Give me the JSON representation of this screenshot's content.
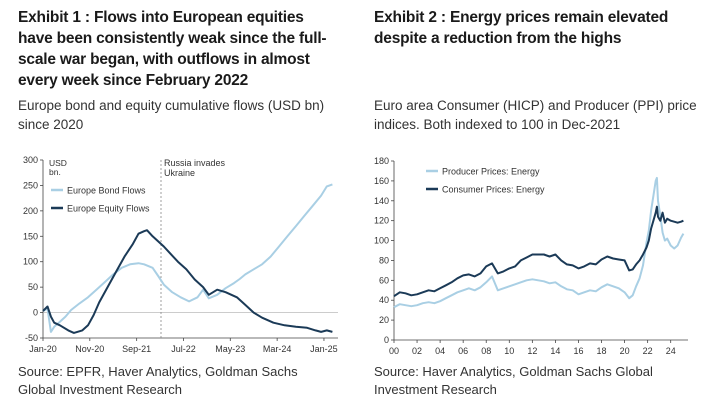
{
  "exhibit1": {
    "title": "Exhibit 1 : Flows into European equities have been consistently weak since the full-scale war began, with outflows in almost every week since February 2022",
    "subtitle": "Europe bond and equity cumulative flows (USD bn) since 2020",
    "source": "Source: EPFR, Haver Analytics, Goldman Sachs Global Investment Research"
  },
  "exhibit2": {
    "title": "Exhibit 2 : Energy prices remain elevated despite a reduction from the highs",
    "subtitle": "Euro area Consumer (HICP) and Producer (PPI) price indices. Both indexed to 100 in Dec-2021",
    "source": "Source: Haver Analytics, Goldman Sachs Global Investment Research"
  },
  "colors": {
    "dark": "#1b3a57",
    "light": "#a9cfe4",
    "axis": "#444444"
  },
  "chart_data": [
    {
      "type": "line",
      "ylabel": "USD bn.",
      "ylim": [
        -50,
        300
      ],
      "yticks": [
        -50,
        0,
        50,
        100,
        150,
        200,
        250,
        300
      ],
      "xlim": [
        2020.0,
        2025.25
      ],
      "xtick_labels": [
        "Jan-20",
        "Nov-20",
        "Sep-21",
        "Jul-22",
        "May-23",
        "Mar-24",
        "Jan-25"
      ],
      "xtick_positions": [
        2020.0,
        2020.833,
        2021.667,
        2022.5,
        2023.333,
        2024.167,
        2025.0
      ],
      "annotation": {
        "text_line1": "Russia invades",
        "text_line2": "Ukraine",
        "x": 2022.1
      },
      "legend": "top-left",
      "grid": false,
      "series": [
        {
          "name": "Europe Bond Flows",
          "color": "#a9cfe4",
          "x": [
            2020.0,
            2020.08,
            2020.14,
            2020.2,
            2020.3,
            2020.4,
            2020.5,
            2020.65,
            2020.8,
            2020.95,
            2021.1,
            2021.25,
            2021.4,
            2021.55,
            2021.7,
            2021.8,
            2021.95,
            2022.05,
            2022.15,
            2022.3,
            2022.45,
            2022.6,
            2022.75,
            2022.85,
            2022.95,
            2023.1,
            2023.25,
            2023.4,
            2023.5,
            2023.6,
            2023.75,
            2023.9,
            2024.05,
            2024.2,
            2024.35,
            2024.5,
            2024.65,
            2024.8,
            2024.95,
            2025.05,
            2025.15
          ],
          "y": [
            3,
            8,
            -38,
            -28,
            -18,
            -8,
            5,
            18,
            30,
            45,
            60,
            75,
            88,
            95,
            97,
            95,
            88,
            72,
            55,
            40,
            30,
            22,
            30,
            45,
            28,
            35,
            48,
            58,
            66,
            75,
            85,
            95,
            110,
            130,
            150,
            170,
            190,
            210,
            230,
            248,
            252
          ]
        },
        {
          "name": "Europe Equity Flows",
          "color": "#1b3a57",
          "x": [
            2020.0,
            2020.08,
            2020.14,
            2020.2,
            2020.3,
            2020.45,
            2020.55,
            2020.7,
            2020.8,
            2020.9,
            2021.0,
            2021.15,
            2021.3,
            2021.45,
            2021.6,
            2021.7,
            2021.8,
            2021.85,
            2021.95,
            2022.05,
            2022.15,
            2022.25,
            2022.4,
            2022.55,
            2022.7,
            2022.85,
            2022.95,
            2023.1,
            2023.25,
            2023.45,
            2023.6,
            2023.75,
            2023.9,
            2024.1,
            2024.3,
            2024.5,
            2024.7,
            2024.85,
            2024.95,
            2025.05,
            2025.15
          ],
          "y": [
            3,
            12,
            -8,
            -20,
            -25,
            -35,
            -40,
            -35,
            -25,
            -5,
            20,
            50,
            80,
            110,
            135,
            155,
            160,
            162,
            150,
            140,
            130,
            118,
            100,
            85,
            65,
            50,
            35,
            45,
            40,
            30,
            15,
            0,
            -10,
            -20,
            -25,
            -28,
            -30,
            -35,
            -38,
            -35,
            -38
          ]
        }
      ]
    },
    {
      "type": "line",
      "ylim": [
        0,
        180
      ],
      "yticks": [
        0,
        20,
        40,
        60,
        80,
        100,
        120,
        140,
        160,
        180
      ],
      "xlim": [
        2000,
        2025.5
      ],
      "xtick_labels": [
        "00",
        "02",
        "04",
        "06",
        "08",
        "10",
        "12",
        "14",
        "16",
        "18",
        "20",
        "22",
        "24"
      ],
      "xtick_positions": [
        2000,
        2002,
        2004,
        2006,
        2008,
        2010,
        2012,
        2014,
        2016,
        2018,
        2020,
        2022,
        2024
      ],
      "legend": "top-left",
      "grid": false,
      "series": [
        {
          "name": "Consumer Prices: Energy",
          "color": "#1b3a57",
          "x": [
            2000,
            2000.5,
            2001,
            2001.5,
            2002,
            2002.5,
            2003,
            2003.5,
            2004,
            2004.5,
            2005,
            2005.5,
            2006,
            2006.5,
            2007,
            2007.5,
            2008,
            2008.5,
            2009,
            2009.5,
            2010,
            2010.5,
            2011,
            2011.5,
            2012,
            2012.5,
            2013,
            2013.5,
            2014,
            2014.5,
            2015,
            2015.5,
            2016,
            2016.5,
            2017,
            2017.5,
            2018,
            2018.5,
            2019,
            2019.5,
            2020,
            2020.4,
            2020.7,
            2021,
            2021.3,
            2021.6,
            2021.9,
            2022.1,
            2022.3,
            2022.5,
            2022.7,
            2022.8,
            2022.9,
            2023.1,
            2023.3,
            2023.5,
            2023.7,
            2024,
            2024.3,
            2024.6,
            2024.9,
            2025.1
          ],
          "y": [
            44,
            48,
            47,
            45,
            46,
            48,
            50,
            49,
            52,
            55,
            58,
            62,
            65,
            66,
            64,
            67,
            74,
            77,
            67,
            69,
            72,
            74,
            80,
            83,
            86,
            86,
            86,
            84,
            86,
            80,
            76,
            75,
            72,
            74,
            77,
            76,
            81,
            84,
            82,
            81,
            80,
            70,
            71,
            76,
            80,
            86,
            93,
            100,
            112,
            120,
            128,
            134,
            124,
            120,
            128,
            118,
            122,
            120,
            119,
            118,
            119,
            120
          ]
        },
        {
          "name": "Producer Prices: Energy",
          "color": "#a9cfe4",
          "x": [
            2000,
            2000.5,
            2001,
            2001.5,
            2002,
            2002.5,
            2003,
            2003.5,
            2004,
            2004.5,
            2005,
            2005.5,
            2006,
            2006.5,
            2007,
            2007.5,
            2008,
            2008.5,
            2009,
            2009.5,
            2010,
            2010.5,
            2011,
            2011.5,
            2012,
            2012.5,
            2013,
            2013.5,
            2014,
            2014.5,
            2015,
            2015.5,
            2016,
            2016.5,
            2017,
            2017.5,
            2018,
            2018.5,
            2019,
            2019.5,
            2020,
            2020.4,
            2020.7,
            2021,
            2021.3,
            2021.6,
            2021.9,
            2022.1,
            2022.3,
            2022.5,
            2022.7,
            2022.8,
            2022.9,
            2023.1,
            2023.3,
            2023.5,
            2023.7,
            2024,
            2024.3,
            2024.6,
            2024.9,
            2025.1
          ],
          "y": [
            33,
            36,
            35,
            34,
            35,
            37,
            38,
            37,
            39,
            42,
            45,
            48,
            50,
            52,
            50,
            53,
            58,
            64,
            50,
            52,
            54,
            56,
            58,
            60,
            61,
            60,
            59,
            57,
            58,
            54,
            51,
            50,
            46,
            48,
            50,
            49,
            53,
            56,
            54,
            52,
            48,
            42,
            45,
            54,
            62,
            75,
            98,
            110,
            130,
            145,
            160,
            163,
            140,
            125,
            108,
            100,
            102,
            95,
            92,
            95,
            103,
            107
          ]
        }
      ]
    }
  ]
}
